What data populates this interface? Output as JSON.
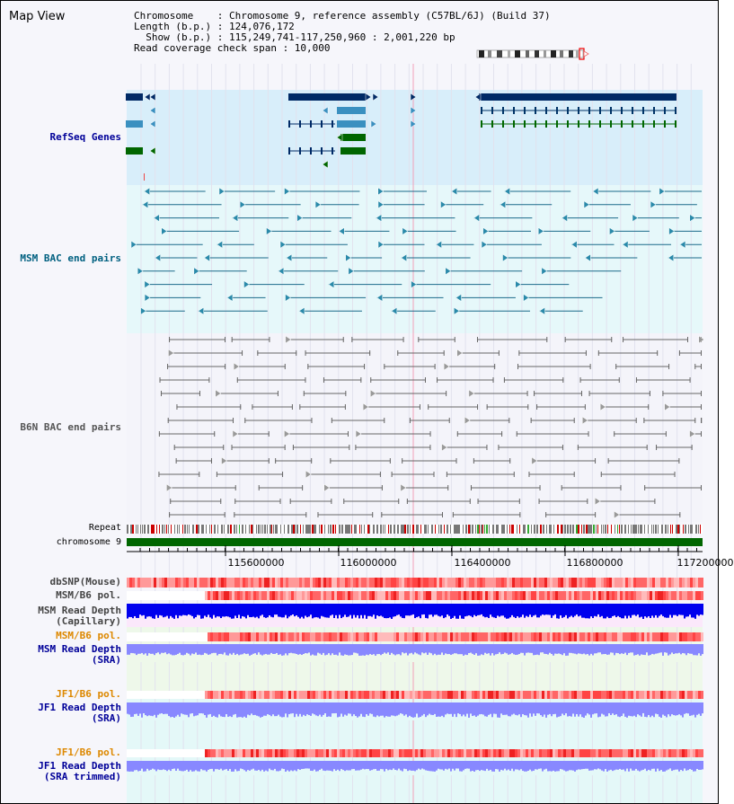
{
  "view_title": "Map View",
  "info": {
    "line1": "Chromosome    : Chromosome 9, reference assembly (C57BL/6J) (Build 37)",
    "line2": "Length (b.p.) : 124,076,172",
    "line3": "  Show (b.p.) : 115,249,741-117,250,960 : 2,001,220 bp",
    "line4": "Read coverage check span : 10,000"
  },
  "tracks": {
    "refseq": "RefSeq Genes",
    "msm_bac": "MSM BAC end pairs",
    "b6n_bac": "B6N BAC end pairs",
    "repeat": "Repeat",
    "chromosome": "chromosome 9",
    "dbsnp": "dbSNP(Mouse)",
    "msm_b6_pol": "MSM/B6 pol.",
    "msm_depth_cap_1": "MSM Read Depth",
    "msm_depth_cap_2": "(Capillary)",
    "msm_b6_pol_2": "MSM/B6 pol.",
    "msm_depth_sra_1": "MSM Read Depth",
    "msm_depth_sra_2": "(SRA)",
    "jf1_b6_pol": "JF1/B6 pol.",
    "jf1_depth_sra_1": "JF1 Read Depth",
    "jf1_depth_sra_2": "(SRA)",
    "jf1_b6_pol_2": "JF1/B6 pol.",
    "jf1_depth_trim_1": "JF1 Read Depth",
    "jf1_depth_trim_2": "(SRA trimmed)"
  },
  "axis": {
    "ticks": [
      "115600000",
      "116000000",
      "116400000",
      "116800000",
      "117200000"
    ]
  },
  "colors": {
    "refseq_band": "#d8eefa",
    "bac_band": "#e6f8fa",
    "gene_dark": "#002a66",
    "gene_mid": "#3b90c0",
    "gene_green": "#006600",
    "msm_pair": "#1a6a8a",
    "b6n_pair": "#666666",
    "chromosome": "#006600",
    "label_blue": "#000099",
    "label_teal": "#006080",
    "label_orange": "#dd8800",
    "depth_dark": "#0000ee",
    "depth_light": "#8888ff"
  }
}
